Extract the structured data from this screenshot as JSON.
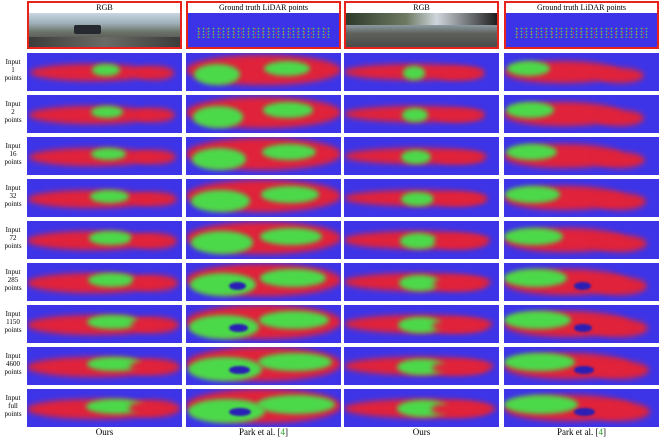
{
  "headers": [
    {
      "label": "RGB",
      "kind": "rgb"
    },
    {
      "label": "Ground truth LiDAR points",
      "kind": "lidar"
    },
    {
      "label": "RGB",
      "kind": "rgb"
    },
    {
      "label": "Ground truth LiDAR points",
      "kind": "lidar"
    }
  ],
  "rows": [
    {
      "line1": "Input",
      "line2": "1",
      "line3": "points"
    },
    {
      "line1": "Input",
      "line2": "2",
      "line3": "points"
    },
    {
      "line1": "Input",
      "line2": "16",
      "line3": "points"
    },
    {
      "line1": "Input",
      "line2": "32",
      "line3": "points"
    },
    {
      "line1": "Input",
      "line2": "72",
      "line3": "points"
    },
    {
      "line1": "Input",
      "line2": "285",
      "line3": "points"
    },
    {
      "line1": "Input",
      "line2": "1150",
      "line3": "points"
    },
    {
      "line1": "Input",
      "line2": "4600",
      "line3": "points"
    },
    {
      "line1": "Input",
      "line2": "full",
      "line3": "points"
    }
  ],
  "footer": [
    {
      "text": "Ours",
      "ref": ""
    },
    {
      "text": "Park et al. [",
      "ref": "4",
      "close": "]"
    },
    {
      "text": "Ours",
      "ref": ""
    },
    {
      "text": "Park et al. [",
      "ref": "4",
      "close": "]"
    }
  ],
  "colors": {
    "depth_far": "#3d34e8",
    "depth_mid": "#e0223a",
    "depth_near": "#4bd94a",
    "frame": "#e8231b"
  }
}
